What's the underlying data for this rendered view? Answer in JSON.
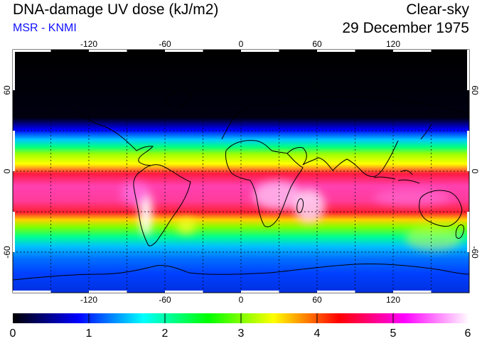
{
  "header": {
    "title": "DNA-damage UV dose (kJ/m2)",
    "source": "MSR - KNMI",
    "sky_condition": "Clear-sky",
    "date": "29 December 1975"
  },
  "map": {
    "projection": "equirectangular",
    "lon_range": [
      -180,
      180
    ],
    "lat_range": [
      -90,
      90
    ],
    "lon_ticks": [
      "-120",
      "-60",
      "0",
      "60",
      "120"
    ],
    "lat_ticks": [
      "60",
      "0",
      "-60"
    ],
    "gridlines": "dotted every 30 degrees",
    "coastlines": true
  },
  "colorbar": {
    "min": 0,
    "max": 6,
    "labels": [
      "0",
      "1",
      "2",
      "3",
      "4",
      "5",
      "6"
    ],
    "colors": [
      "#000000",
      "#0000ff",
      "#00ffff",
      "#00ff00",
      "#ffff00",
      "#ff0000",
      "#ff00ff",
      "#ffffff"
    ]
  }
}
